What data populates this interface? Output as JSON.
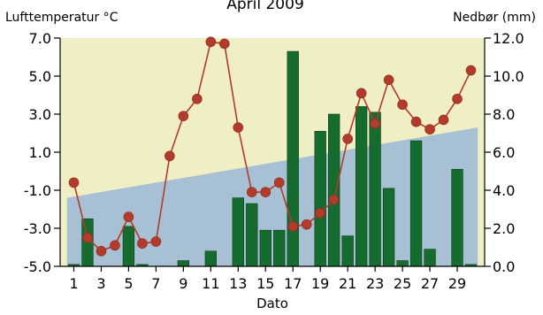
{
  "chart_data": {
    "type": "bar+line",
    "title": "April 2009",
    "xlabel": "Dato",
    "ylabel_left": "Lufttemperatur °C",
    "ylabel_right": "Nedbør (mm)",
    "xlim": [
      0,
      31
    ],
    "ylim_left": [
      -5.0,
      7.0
    ],
    "ylim_right": [
      0.0,
      12.0
    ],
    "x_tick_labels": [
      "1",
      "3",
      "5",
      "7",
      "9",
      "11",
      "13",
      "15",
      "17",
      "19",
      "21",
      "23",
      "25",
      "27",
      "29"
    ],
    "y_left_ticks": [
      "-5.0",
      "-3.0",
      "-1.0",
      "1.0",
      "3.0",
      "5.0",
      "7.0"
    ],
    "y_right_ticks": [
      "0.0",
      "2.0",
      "4.0",
      "6.0",
      "8.0",
      "10.0",
      "12.0"
    ],
    "grid": false,
    "colors": {
      "plot_background": "#f0eec4",
      "normal_band": "#a7c0d4",
      "bars": "#166b2f",
      "bar_edge": "#0b3d19",
      "line": "#b23b2b",
      "markers": "#b23b2b"
    },
    "normal_band": {
      "x": [
        0.5,
        30.5
      ],
      "y_upper": [
        -1.4,
        2.3
      ]
    },
    "days": [
      1,
      2,
      3,
      4,
      5,
      6,
      7,
      8,
      9,
      10,
      11,
      12,
      13,
      14,
      15,
      16,
      17,
      18,
      19,
      20,
      21,
      22,
      23,
      24,
      25,
      26,
      27,
      28,
      29,
      30
    ],
    "temperature": [
      -0.6,
      -3.5,
      -4.2,
      -3.9,
      -2.4,
      -3.8,
      -3.7,
      0.8,
      2.9,
      3.8,
      6.8,
      6.7,
      2.3,
      -1.1,
      -1.1,
      -0.6,
      -2.9,
      -2.8,
      -2.2,
      -1.5,
      1.7,
      4.1,
      2.5,
      4.8,
      3.5,
      2.6,
      2.2,
      2.7,
      3.8,
      5.3
    ],
    "precipitation": [
      0.1,
      2.5,
      0.0,
      0.0,
      2.1,
      0.1,
      0.0,
      0.0,
      0.3,
      0.0,
      0.8,
      0.0,
      3.6,
      3.3,
      1.9,
      1.9,
      11.3,
      0.0,
      7.1,
      8.0,
      1.6,
      8.4,
      8.1,
      4.1,
      0.3,
      6.6,
      0.9,
      0.0,
      5.1,
      0.1
    ]
  }
}
